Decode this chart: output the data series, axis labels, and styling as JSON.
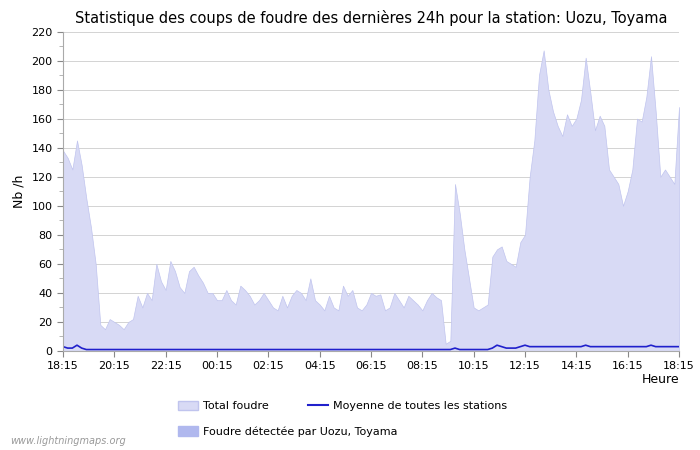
{
  "title": "Statistique des coups de foudre des dernières 24h pour la station: Uozu, Toyama",
  "xlabel": "Heure",
  "ylabel": "Nb /h",
  "ylim": [
    0,
    220
  ],
  "yticks": [
    0,
    20,
    40,
    60,
    80,
    100,
    120,
    140,
    160,
    180,
    200,
    220
  ],
  "xtick_labels": [
    "18:15",
    "20:15",
    "22:15",
    "00:15",
    "02:15",
    "04:15",
    "06:15",
    "08:15",
    "10:15",
    "12:15",
    "14:15",
    "16:15",
    "18:15"
  ],
  "background_color": "#ffffff",
  "fill_color": "#d8daf5",
  "fill_edge_color": "#c0c4ee",
  "line_color": "#2020cc",
  "grid_color": "#cccccc",
  "title_fontsize": 10.5,
  "axis_label_fontsize": 9,
  "tick_fontsize": 8,
  "watermark": "www.lightningmaps.org",
  "legend_labels": [
    "Total foudre",
    "Moyenne de toutes les stations",
    "Foudre détectée par Uozu, Toyama"
  ],
  "total_foudre": [
    138,
    133,
    125,
    145,
    128,
    105,
    85,
    60,
    18,
    15,
    22,
    20,
    18,
    15,
    20,
    22,
    38,
    30,
    40,
    35,
    60,
    48,
    42,
    62,
    55,
    44,
    40,
    55,
    58,
    52,
    47,
    40,
    40,
    35,
    35,
    42,
    35,
    32,
    45,
    42,
    38,
    32,
    35,
    40,
    35,
    30,
    28,
    38,
    30,
    38,
    42,
    40,
    35,
    50,
    35,
    32,
    28,
    38,
    30,
    28,
    45,
    38,
    42,
    30,
    28,
    32,
    40,
    38,
    39,
    28,
    30,
    40,
    35,
    30,
    38,
    35,
    32,
    28,
    35,
    40,
    37,
    35,
    5,
    7,
    115,
    95,
    70,
    50,
    30,
    28,
    30,
    32,
    65,
    70,
    72,
    62,
    60,
    58,
    75,
    80,
    120,
    145,
    190,
    207,
    180,
    165,
    155,
    148,
    163,
    155,
    160,
    173,
    202,
    178,
    152,
    162,
    155,
    125,
    120,
    115,
    100,
    110,
    125,
    160,
    158,
    175,
    203,
    165,
    120,
    125,
    120,
    115,
    168
  ],
  "moyenne": [
    3,
    2,
    2,
    4,
    2,
    1,
    1,
    1,
    1,
    1,
    1,
    1,
    1,
    1,
    1,
    1,
    1,
    1,
    1,
    1,
    1,
    1,
    1,
    1,
    1,
    1,
    1,
    1,
    1,
    1,
    1,
    1,
    1,
    1,
    1,
    1,
    1,
    1,
    1,
    1,
    1,
    1,
    1,
    1,
    1,
    1,
    1,
    1,
    1,
    1,
    1,
    1,
    1,
    1,
    1,
    1,
    1,
    1,
    1,
    1,
    1,
    1,
    1,
    1,
    1,
    1,
    1,
    1,
    1,
    1,
    1,
    1,
    1,
    1,
    1,
    1,
    1,
    1,
    1,
    1,
    1,
    1,
    1,
    1,
    2,
    1,
    1,
    1,
    1,
    1,
    1,
    1,
    2,
    4,
    3,
    2,
    2,
    2,
    3,
    4,
    3,
    3,
    3,
    3,
    3,
    3,
    3,
    3,
    3,
    3,
    3,
    3,
    4,
    3,
    3,
    3,
    3,
    3,
    3,
    3,
    3,
    3,
    3,
    3,
    3,
    3,
    4,
    3,
    3,
    3,
    3,
    3,
    3
  ]
}
